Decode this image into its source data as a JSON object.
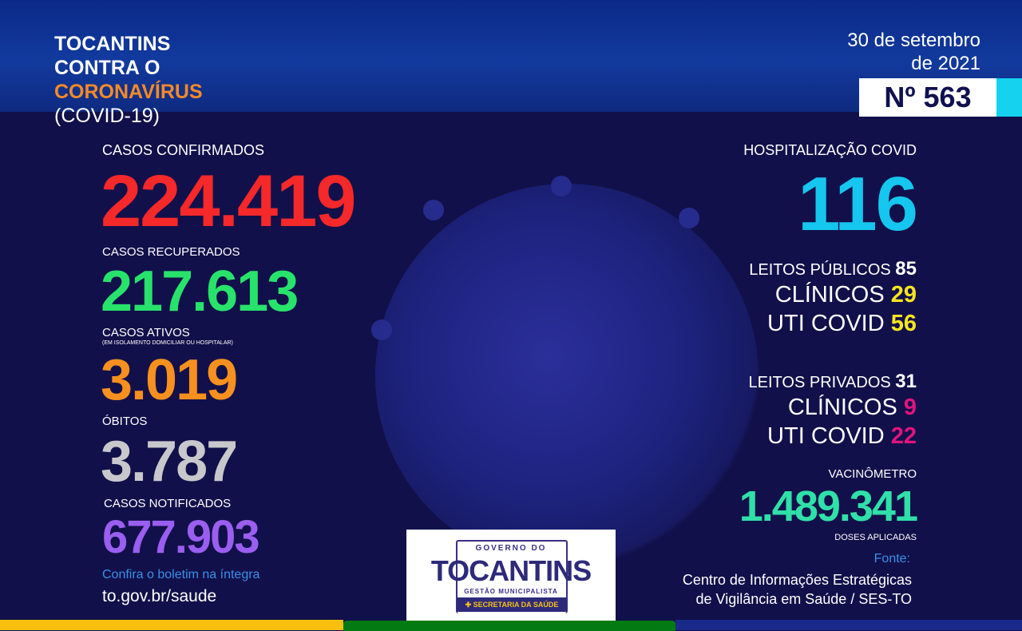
{
  "header": {
    "title_line1": "TOCANTINS",
    "title_line2": "CONTRA O",
    "title_line3": "CORONAVÍRUS",
    "title_line4": "(COVID-19)",
    "date_line1": "30 de setembro",
    "date_line2": "de 2021",
    "bulletin_number": "Nº 563"
  },
  "left": {
    "confirmed_label": "CASOS CONFIRMADOS",
    "confirmed": "224.419",
    "recovered_label": "CASOS RECUPERADOS",
    "recovered": "217.613",
    "active_label": "CASOS ATIVOS",
    "active_sublabel": "(EM ISOLAMENTO DOMICILIAR OU HOSPITALAR)",
    "active": "3.019",
    "deaths_label": "ÓBITOS",
    "deaths": "3.787",
    "notified_label": "CASOS NOTIFICADOS",
    "notified": "677.903",
    "link_caption": "Confira o boletim na íntegra",
    "link": "to.gov.br/saude"
  },
  "right": {
    "hosp_label": "HOSPITALIZAÇÃO COVID",
    "hosp": "116",
    "public_label": "LEITOS PÚBLICOS",
    "public": "85",
    "public_clin_label": "CLÍNICOS",
    "public_clin": "29",
    "public_uti_label": "UTI COVID",
    "public_uti": "56",
    "private_label": "LEITOS PRIVADOS",
    "private": "31",
    "private_clin_label": "CLÍNICOS",
    "private_clin": "9",
    "private_uti_label": "UTI COVID",
    "private_uti": "22",
    "vac_label": "VACINÔMETRO",
    "vac": "1.489.341",
    "vac_sub": "DOSES APLICADAS",
    "source_label": "Fonte:",
    "source_line1": "Centro de Informações Estratégicas",
    "source_line2": "de Vigilância em Saúde / SES-TO"
  },
  "logo": {
    "line1": "GOVERNO DO",
    "line2": "TOCANTINS",
    "line3": "GESTÃO MUNICIPALISTA",
    "line4": "SECRETARIA DA SAÚDE"
  },
  "colors": {
    "confirmed": "#f5282a",
    "recovered": "#27e36b",
    "active": "#f7901e",
    "deaths": "#c8c8cc",
    "notified": "#9a5ef0",
    "hosp": "#15c6ef",
    "public": "#f6e51f",
    "private": "#e0147e",
    "vac": "#2fe0a8",
    "orange": "#f58a28"
  }
}
